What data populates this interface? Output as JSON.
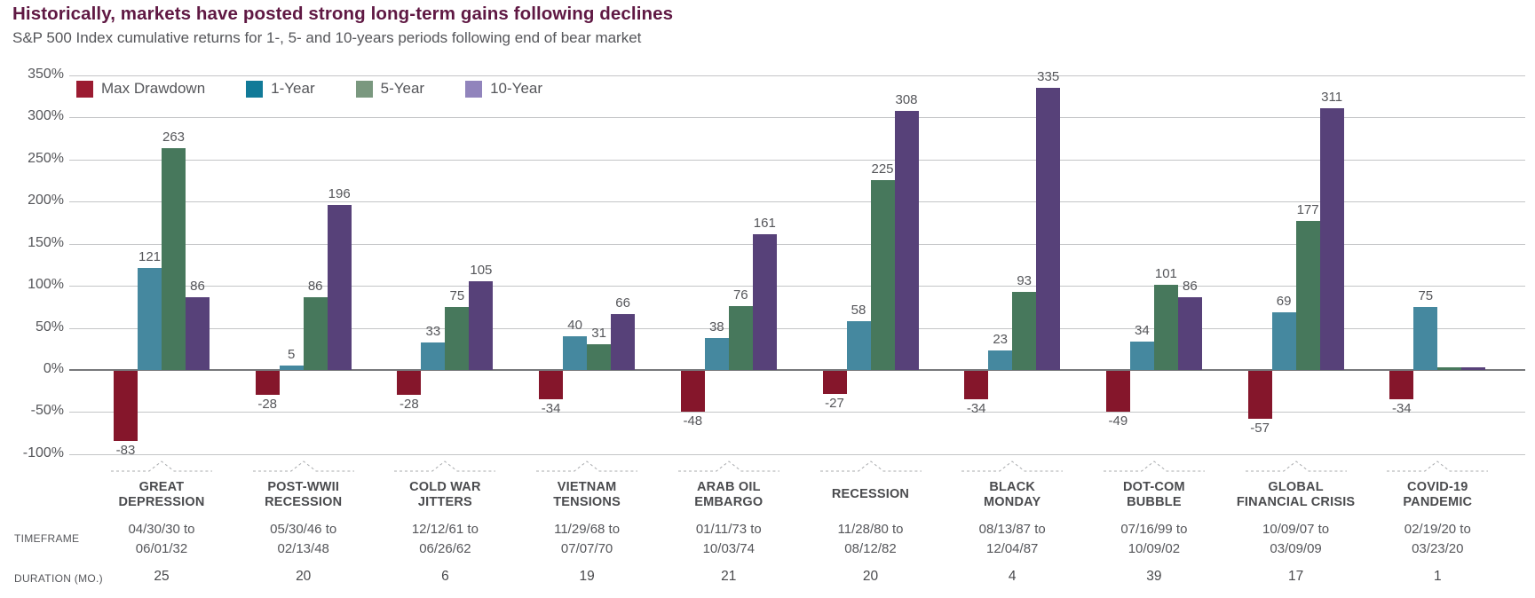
{
  "header": {
    "title": "Historically, markets have posted strong long-term gains following declines",
    "subtitle": "S&P 500 Index cumulative returns for 1-, 5- and 10-years periods following end of bear market"
  },
  "row_labels": {
    "timeframe": "TIMEFRAME",
    "duration": "DURATION (MO.)"
  },
  "colors": {
    "title_text": "#5F1843",
    "body_text": "#55565A",
    "category_text": "#4A4B4E",
    "duration_text": "#48494C",
    "gridline": "#C4C5C7",
    "axis_line": "#77787B",
    "brace": "#A9ABAE",
    "max_drawdown_bar": "#85162B",
    "one_year_bar": "#45889F",
    "five_year_bar": "#47785C",
    "ten_year_bar": "#574179"
  },
  "chart_data": {
    "type": "bar",
    "title": "Historically, markets have posted strong long-term gains following declines",
    "subtitle": "S&P 500 Index cumulative returns for 1-, 5- and 10-years periods following end of bear market",
    "ylabel": "",
    "xlabel": "",
    "ylim": [
      -100,
      350
    ],
    "grid": true,
    "legend_position": "top-left-inside",
    "y_ticks": [
      {
        "value": 350,
        "label": "350%"
      },
      {
        "value": 300,
        "label": "300%"
      },
      {
        "value": 250,
        "label": "250%"
      },
      {
        "value": 200,
        "label": "200%"
      },
      {
        "value": 150,
        "label": "150%"
      },
      {
        "value": 100,
        "label": "100%"
      },
      {
        "value": 50,
        "label": "50%"
      },
      {
        "value": 0,
        "label": "0%"
      },
      {
        "value": -50,
        "label": "-50%"
      },
      {
        "value": -100,
        "label": "-100%"
      }
    ],
    "series": [
      {
        "name": "Max Drawdown",
        "bar_color": "#85162B",
        "legend_color": "#9B1B31"
      },
      {
        "name": "1-Year",
        "bar_color": "#45889F",
        "legend_color": "#117A98"
      },
      {
        "name": "5-Year",
        "bar_color": "#47785C",
        "legend_color": "#7A987F"
      },
      {
        "name": "10-Year",
        "bar_color": "#574179",
        "legend_color": "#9184BC"
      }
    ],
    "groups": [
      {
        "name_lines": [
          "GREAT",
          "DEPRESSION"
        ],
        "timeframe_lines": [
          "04/30/30 to",
          "06/01/32"
        ],
        "duration_months": "25",
        "values": [
          -83,
          121,
          263,
          86
        ]
      },
      {
        "name_lines": [
          "POST-WWII",
          "RECESSION"
        ],
        "timeframe_lines": [
          "05/30/46 to",
          "02/13/48"
        ],
        "duration_months": "20",
        "values": [
          -28,
          5,
          86,
          196
        ]
      },
      {
        "name_lines": [
          "COLD WAR",
          "JITTERS"
        ],
        "timeframe_lines": [
          "12/12/61 to",
          "06/26/62"
        ],
        "duration_months": "6",
        "values": [
          -28,
          33,
          75,
          105
        ]
      },
      {
        "name_lines": [
          "VIETNAM",
          "TENSIONS"
        ],
        "timeframe_lines": [
          "11/29/68 to",
          "07/07/70"
        ],
        "duration_months": "19",
        "values": [
          -34,
          40,
          31,
          66
        ]
      },
      {
        "name_lines": [
          "ARAB OIL",
          "EMBARGO"
        ],
        "timeframe_lines": [
          "01/11/73 to",
          "10/03/74"
        ],
        "duration_months": "21",
        "values": [
          -48,
          38,
          76,
          161
        ]
      },
      {
        "name_lines": [
          "RECESSION"
        ],
        "timeframe_lines": [
          "11/28/80 to",
          "08/12/82"
        ],
        "duration_months": "20",
        "values": [
          -27,
          58,
          225,
          308
        ]
      },
      {
        "name_lines": [
          "BLACK",
          "MONDAY"
        ],
        "timeframe_lines": [
          "08/13/87 to",
          "12/04/87"
        ],
        "duration_months": "4",
        "values": [
          -34,
          23,
          93,
          335
        ]
      },
      {
        "name_lines": [
          "DOT-COM",
          "BUBBLE"
        ],
        "timeframe_lines": [
          "07/16/99 to",
          "10/09/02"
        ],
        "duration_months": "39",
        "values": [
          -49,
          34,
          101,
          86
        ]
      },
      {
        "name_lines": [
          "GLOBAL",
          "FINANCIAL CRISIS"
        ],
        "timeframe_lines": [
          "10/09/07 to",
          "03/09/09"
        ],
        "duration_months": "17",
        "values": [
          -57,
          69,
          177,
          311
        ]
      },
      {
        "name_lines": [
          "COVID-19",
          "PANDEMIC"
        ],
        "timeframe_lines": [
          "02/19/20 to",
          "03/23/20"
        ],
        "duration_months": "1",
        "values": [
          -34,
          75,
          0,
          0
        ]
      }
    ]
  }
}
